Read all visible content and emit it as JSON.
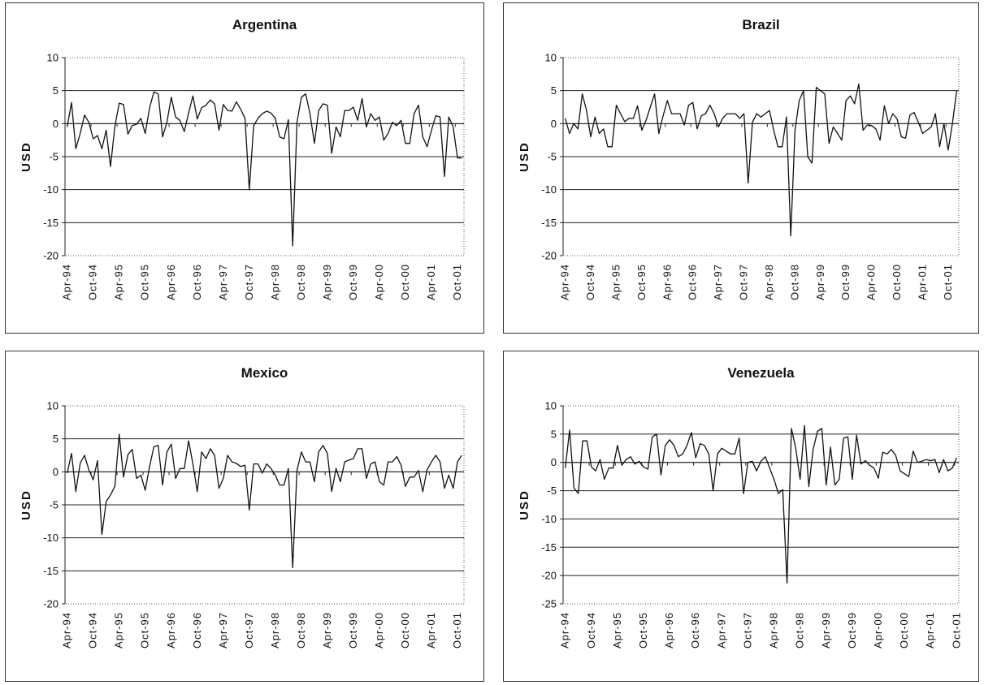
{
  "chart_data": [
    {
      "type": "line",
      "title": "Argentina",
      "ylabel": "USD",
      "ylim": [
        -20,
        10
      ],
      "yticks": [
        10,
        5,
        0,
        -5,
        -10,
        -15,
        -20
      ],
      "x_start": "Apr-94",
      "x_end": "Dec-01",
      "xtick_labels": [
        "Apr-94",
        "Oct-94",
        "Apr-95",
        "Oct-95",
        "Apr-96",
        "Oct-96",
        "Apr-97",
        "Oct-97",
        "Apr-98",
        "Oct-98",
        "Apr-99",
        "Oct-99",
        "Apr-00",
        "Oct-00",
        "Apr-01",
        "Oct-01"
      ],
      "grid": "horizontal",
      "values": [
        -0.5,
        3.2,
        -3.8,
        -1.5,
        1.3,
        0.2,
        -2.3,
        -1.8,
        -3.8,
        -1.0,
        -6.5,
        -0.4,
        3.1,
        2.9,
        -1.6,
        -0.3,
        -0.1,
        0.8,
        -1.5,
        2.4,
        4.8,
        4.5,
        -2.0,
        0.2,
        4.0,
        1.0,
        0.5,
        -1.2,
        1.6,
        4.2,
        0.7,
        2.4,
        2.8,
        3.6,
        3.0,
        -1.0,
        2.9,
        2.0,
        1.9,
        3.3,
        2.2,
        0.8,
        -10.0,
        -0.3,
        0.8,
        1.5,
        1.9,
        1.6,
        0.8,
        -2.0,
        -2.3,
        0.6,
        -18.5,
        0.2,
        4.0,
        4.5,
        1.5,
        -3.0,
        2.0,
        3.0,
        2.8,
        -4.5,
        -0.5,
        -2.0,
        2.0,
        2.0,
        2.5,
        0.5,
        3.8,
        -0.5,
        1.5,
        0.5,
        1.0,
        -2.5,
        -1.5,
        0.2,
        -0.3,
        0.5,
        -3.0,
        -3.0,
        1.5,
        2.8,
        -2.0,
        -3.5,
        -1.0,
        1.2,
        1.0,
        -8.0,
        1.0,
        -0.5,
        -5.2,
        -5.2
      ]
    },
    {
      "type": "line",
      "title": "Brazil",
      "ylabel": "USD",
      "ylim": [
        -20,
        10
      ],
      "yticks": [
        10,
        5,
        0,
        -5,
        -10,
        -15,
        -20
      ],
      "x_start": "Apr-94",
      "x_end": "Dec-01",
      "xtick_labels": [
        "Apr-94",
        "Oct-94",
        "Apr-95",
        "Oct-95",
        "Apr-96",
        "Oct-96",
        "Apr-97",
        "Oct-97",
        "Apr-98",
        "Oct-98",
        "Apr-99",
        "Oct-99",
        "Apr-00",
        "Oct-00",
        "Apr-01",
        "Oct-01"
      ],
      "grid": "horizontal",
      "values": [
        0.8,
        -1.5,
        0.0,
        -0.8,
        4.5,
        2.0,
        -2.0,
        1.0,
        -1.5,
        -0.8,
        -3.5,
        -3.5,
        2.8,
        1.5,
        0.3,
        0.8,
        0.8,
        2.7,
        -1.0,
        0.5,
        2.5,
        4.5,
        -1.5,
        1.2,
        3.5,
        1.5,
        1.5,
        1.5,
        -0.2,
        2.8,
        3.2,
        -0.8,
        1.2,
        1.5,
        2.8,
        1.5,
        -0.5,
        0.8,
        1.5,
        1.5,
        1.5,
        0.8,
        1.5,
        -9.0,
        0.2,
        1.5,
        1.0,
        1.5,
        2.0,
        -1.0,
        -3.5,
        -3.5,
        1.0,
        -17.0,
        -1.0,
        3.5,
        5.0,
        -5.0,
        -6.0,
        5.5,
        5.0,
        4.5,
        -3.0,
        -0.5,
        -1.5,
        -2.5,
        3.5,
        4.2,
        3.0,
        6.0,
        -1.0,
        -0.2,
        -0.3,
        -0.8,
        -2.5,
        2.7,
        0.0,
        1.5,
        0.7,
        -2.0,
        -2.2,
        1.3,
        1.7,
        0.2,
        -1.5,
        -1.0,
        -0.5,
        1.5,
        -3.5,
        0.0,
        -4.0,
        0.0,
        5.0
      ]
    },
    {
      "type": "line",
      "title": "Mexico",
      "ylabel": "USD",
      "ylim": [
        -20,
        10
      ],
      "yticks": [
        10,
        5,
        0,
        -5,
        -10,
        -15,
        -20
      ],
      "x_start": "Apr-94",
      "x_end": "Dec-01",
      "xtick_labels": [
        "Apr-94",
        "Oct-94",
        "Apr-95",
        "Oct-95",
        "Apr-96",
        "Oct-96",
        "Apr-97",
        "Oct-97",
        "Apr-98",
        "Oct-98",
        "Apr-99",
        "Oct-99",
        "Apr-00",
        "Oct-00",
        "Apr-01",
        "Oct-01"
      ],
      "grid": "horizontal",
      "values": [
        -0.2,
        2.8,
        -3.0,
        1.3,
        2.5,
        0.3,
        -1.2,
        1.7,
        -9.5,
        -4.5,
        -3.5,
        -2.2,
        5.7,
        -0.8,
        2.6,
        3.4,
        -1.0,
        -0.5,
        -2.8,
        0.8,
        3.8,
        4.0,
        -2.0,
        3.0,
        4.2,
        -1.0,
        0.5,
        0.5,
        4.7,
        1.2,
        -3.0,
        3.0,
        2.0,
        3.5,
        2.5,
        -2.5,
        -1.0,
        2.5,
        1.5,
        1.3,
        0.8,
        1.0,
        -5.8,
        1.2,
        1.2,
        -0.2,
        1.2,
        0.5,
        -0.5,
        -2.0,
        -2.0,
        0.5,
        -14.5,
        0.2,
        3.0,
        1.5,
        1.5,
        -1.5,
        3.0,
        4.0,
        2.8,
        -3.0,
        0.5,
        -1.5,
        1.5,
        1.8,
        2.0,
        3.5,
        3.5,
        -1.0,
        1.2,
        1.5,
        -1.5,
        -2.0,
        1.5,
        1.5,
        2.3,
        1.0,
        -2.2,
        -0.8,
        -0.8,
        0.2,
        -3.0,
        0.3,
        1.5,
        2.5,
        1.5,
        -2.5,
        -0.5,
        -2.5,
        1.5,
        2.5
      ]
    },
    {
      "type": "line",
      "title": "Venezuela",
      "ylabel": "USD",
      "ylim": [
        -25,
        10
      ],
      "yticks": [
        10,
        5,
        0,
        -5,
        -10,
        -15,
        -20,
        -25
      ],
      "x_start": "Apr-94",
      "x_end": "Dec-01",
      "xtick_labels": [
        "Apr-94",
        "Oct-94",
        "Apr-95",
        "Oct-95",
        "Apr-96",
        "Oct-96",
        "Apr-97",
        "Oct-97",
        "Apr-98",
        "Oct-98",
        "Apr-99",
        "Oct-99",
        "Apr-00",
        "Oct-00",
        "Apr-01",
        "Oct-01"
      ],
      "grid": "horizontal",
      "values": [
        -1.0,
        5.7,
        -4.5,
        -5.5,
        3.8,
        3.8,
        -0.8,
        -1.5,
        0.5,
        -3.0,
        -1.0,
        -1.0,
        3.0,
        -0.5,
        0.5,
        1.0,
        -0.3,
        0.2,
        -0.8,
        -1.2,
        4.5,
        5.0,
        -2.2,
        3.0,
        4.0,
        3.0,
        1.0,
        1.5,
        3.0,
        5.3,
        0.8,
        3.3,
        3.0,
        1.5,
        -5.0,
        1.5,
        2.5,
        2.0,
        1.5,
        1.5,
        4.3,
        -5.5,
        0.0,
        0.2,
        -1.5,
        0.2,
        1.0,
        -1.0,
        -3.0,
        -5.5,
        -4.8,
        -21.3,
        6.0,
        2.5,
        -3.0,
        6.5,
        -4.3,
        2.3,
        5.5,
        6.0,
        -4.0,
        2.7,
        -4.0,
        -3.0,
        4.3,
        4.5,
        -3.0,
        4.8,
        -0.3,
        0.3,
        -0.5,
        -1.0,
        -2.8,
        1.8,
        1.5,
        2.3,
        1.2,
        -1.5,
        -2.0,
        -2.5,
        2.0,
        0.0,
        0.2,
        0.5,
        0.3,
        0.5,
        -1.8,
        0.5,
        -1.5,
        -1.0,
        0.8
      ]
    }
  ]
}
